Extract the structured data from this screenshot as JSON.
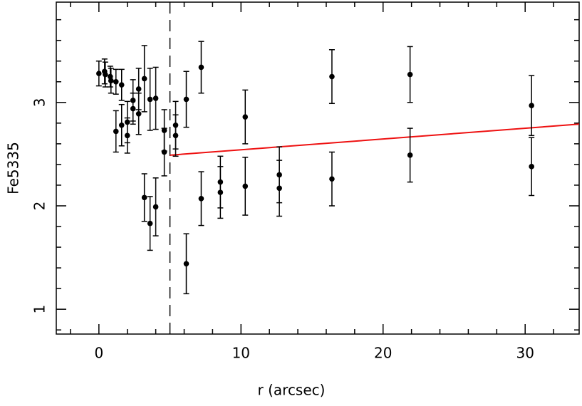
{
  "chart_data": {
    "type": "scatter",
    "xlabel": "r (arcsec)",
    "ylabel": "Fe5335",
    "x": [
      0,
      0.4,
      0.45,
      0.8,
      0.85,
      1.2,
      1.6,
      1.2,
      1.6,
      2.0,
      2.0,
      2.4,
      2.4,
      2.8,
      2.8,
      3.2,
      3.2,
      3.6,
      3.6,
      4.0,
      4.0,
      4.6,
      4.6,
      5.4,
      5.4,
      6.15,
      6.15,
      7.2,
      7.2,
      8.55,
      8.55,
      10.3,
      10.3,
      12.7,
      12.7,
      16.4,
      16.4,
      21.9,
      21.9,
      30.45,
      30.45
    ],
    "values": [
      3.28,
      3.3,
      3.27,
      3.25,
      3.21,
      3.2,
      3.17,
      2.72,
      2.78,
      2.81,
      2.68,
      2.94,
      3.02,
      2.89,
      3.13,
      3.23,
      2.08,
      1.83,
      3.03,
      3.04,
      1.99,
      2.73,
      2.52,
      2.78,
      2.68,
      3.03,
      1.44,
      3.34,
      2.07,
      2.23,
      2.13,
      2.86,
      2.19,
      2.3,
      2.17,
      3.25,
      2.26,
      3.27,
      2.49,
      2.97,
      2.38
    ],
    "errors": [
      0.12,
      0.12,
      0.12,
      0.1,
      0.12,
      0.12,
      0.15,
      0.2,
      0.2,
      0.2,
      0.17,
      0.15,
      0.2,
      0.2,
      0.2,
      0.32,
      0.23,
      0.26,
      0.3,
      0.3,
      0.28,
      0.2,
      0.23,
      0.23,
      0.2,
      0.27,
      0.29,
      0.25,
      0.26,
      0.25,
      0.25,
      0.26,
      0.28,
      0.27,
      0.27,
      0.26,
      0.26,
      0.27,
      0.26,
      0.29,
      0.28
    ],
    "color": "#000000",
    "fit_line": {
      "x": [
        5,
        33.8
      ],
      "y": [
        2.49,
        2.79
      ],
      "color": "#ee1111"
    },
    "vline": 5,
    "xlim": [
      -3,
      33.8
    ],
    "ylim": [
      0.76,
      3.97
    ],
    "xticks": [
      0,
      10,
      20,
      30
    ],
    "yticks": [
      1,
      2,
      3
    ],
    "xminorticks": [
      -2,
      2,
      4,
      6,
      8,
      12,
      14,
      16,
      18,
      22,
      24,
      26,
      28,
      32
    ],
    "yminorticks": [
      0.8,
      1.2,
      1.4,
      1.6,
      1.8,
      2.2,
      2.4,
      2.6,
      2.8,
      3.2,
      3.4,
      3.6,
      3.8
    ]
  }
}
